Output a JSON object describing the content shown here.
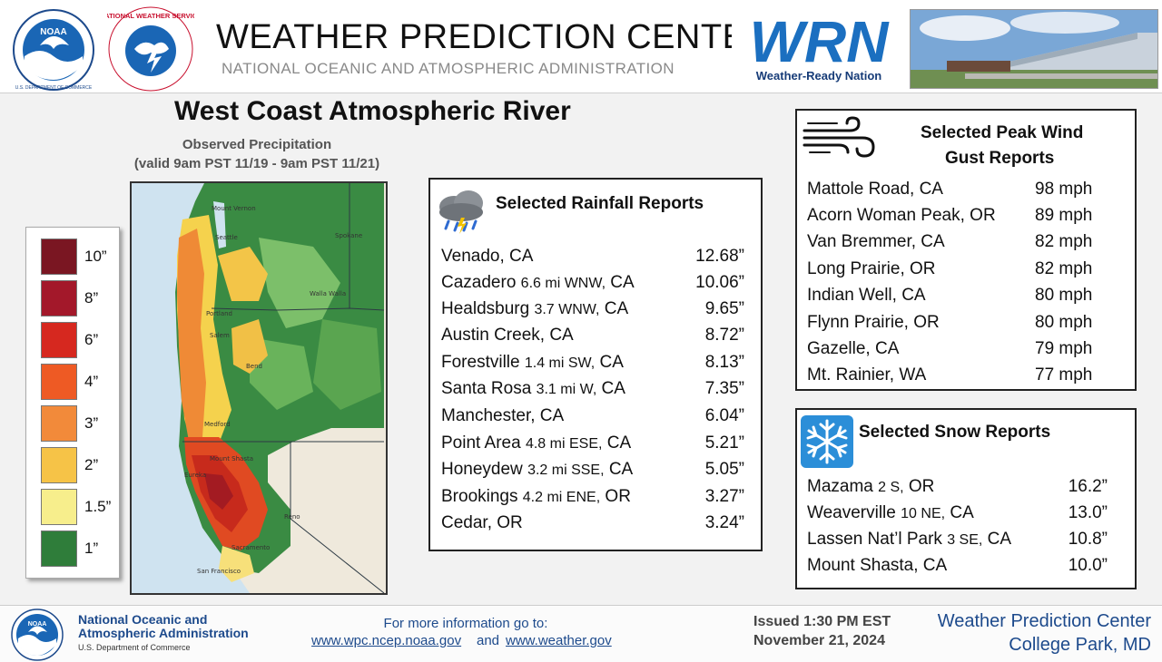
{
  "header": {
    "title": "WEATHER PREDICTION CENTER",
    "subtitle": "NATIONAL OCEANIC AND ATMOSPHERIC ADMINISTRATION",
    "noaa_logo_text": "NOAA",
    "noaa_ring_text": "U.S. DEPARTMENT OF COMMERCE",
    "nws_logo_text": "NATIONAL WEATHER SERVICE",
    "wrn_logo_text": "WRN",
    "wrn_label": "Weather-Ready Nation"
  },
  "main_title": "West Coast Atmospheric River",
  "map": {
    "caption_line1": "Observed Precipitation",
    "caption_line2": "(valid 9am PST 11/19 - 9am PST 11/21)",
    "cities": [
      "Mount Vernon",
      "Seattle",
      "Spokane",
      "Walla Walla",
      "Portland",
      "Salem",
      "Bend",
      "Medford",
      "Mount Shasta",
      "Eureka",
      "Reno",
      "Sacramento",
      "San Francisco"
    ]
  },
  "legend": {
    "items": [
      {
        "label": "10”",
        "color": "#7a1622"
      },
      {
        "label": "8”",
        "color": "#a3182a"
      },
      {
        "label": "6”",
        "color": "#d6281f"
      },
      {
        "label": "4”",
        "color": "#ee5a24"
      },
      {
        "label": "3”",
        "color": "#f28a3a"
      },
      {
        "label": "2”",
        "color": "#f6c347"
      },
      {
        "label": "1.5”",
        "color": "#f7ee8c"
      },
      {
        "label": "1”",
        "color": "#2f7d3a"
      }
    ]
  },
  "rainfall": {
    "title": "Selected Rainfall Reports",
    "icon": "rain-cloud-icon",
    "rows": [
      {
        "place": "Venado,",
        "detail": "",
        "state": "CA",
        "value": "12.68”"
      },
      {
        "place": "Cazadero",
        "detail": "6.6 mi WNW,",
        "state": "CA",
        "value": "10.06”"
      },
      {
        "place": "Healdsburg",
        "detail": "3.7 WNW,",
        "state": "CA",
        "value": "9.65”"
      },
      {
        "place": "Austin Creek,",
        "detail": "",
        "state": "CA",
        "value": "8.72”"
      },
      {
        "place": "Forestville",
        "detail": "1.4 mi SW,",
        "state": "CA",
        "value": "8.13”"
      },
      {
        "place": "Santa Rosa",
        "detail": "3.1 mi W,",
        "state": "CA",
        "value": "7.35”"
      },
      {
        "place": "Manchester,",
        "detail": "",
        "state": "CA",
        "value": "6.04”"
      },
      {
        "place": "Point Area",
        "detail": "4.8 mi ESE,",
        "state": "CA",
        "value": "5.21”"
      },
      {
        "place": "Honeydew",
        "detail": "3.2 mi SSE,",
        "state": "CA",
        "value": "5.05”"
      },
      {
        "place": "Brookings",
        "detail": "4.2 mi ENE,",
        "state": "OR",
        "value": "3.27”"
      },
      {
        "place": "Cedar,",
        "detail": "",
        "state": "OR",
        "value": "3.24”"
      }
    ]
  },
  "wind": {
    "title_line1": "Selected Peak Wind",
    "title_line2": "Gust Reports",
    "icon": "wind-icon",
    "rows": [
      {
        "place": "Mattole Road, CA",
        "value": "98 mph"
      },
      {
        "place": "Acorn Woman Peak, OR",
        "value": "89 mph"
      },
      {
        "place": "Van Bremmer, CA",
        "value": "82 mph"
      },
      {
        "place": "Long Prairie, OR",
        "value": "82 mph"
      },
      {
        "place": "Indian Well, CA",
        "value": "80 mph"
      },
      {
        "place": "Flynn Prairie, OR",
        "value": "80 mph"
      },
      {
        "place": "Gazelle, CA",
        "value": "79 mph"
      },
      {
        "place": "Mt. Rainier, WA",
        "value": "77 mph"
      }
    ]
  },
  "snow": {
    "title": "Selected Snow Reports",
    "icon": "snowflake-icon",
    "rows": [
      {
        "place": "Mazama",
        "detail": "2 S,",
        "state": "OR",
        "value": "16.2”"
      },
      {
        "place": "Weaverville",
        "detail": "10 NE,",
        "state": "CA",
        "value": "13.0”"
      },
      {
        "place": "Lassen Nat’l Park",
        "detail": "3 SE,",
        "state": "CA",
        "value": "10.8”"
      },
      {
        "place": "Mount Shasta, CA",
        "detail": "",
        "state": "",
        "value": "10.0”"
      }
    ]
  },
  "footer": {
    "org_line1": "National Oceanic and",
    "org_line2": "Atmospheric Administration",
    "org_line3": "U.S. Department of Commerce",
    "info_label": "For more information go to:",
    "link1": "www.wpc.ncep.noaa.gov",
    "and": "and",
    "link2": "www.weather.gov",
    "issued_line1": "Issued 1:30 PM EST",
    "issued_line2": "November 21, 2024",
    "wpc_line1": "Weather Prediction Center",
    "wpc_line2": "College Park, MD"
  }
}
